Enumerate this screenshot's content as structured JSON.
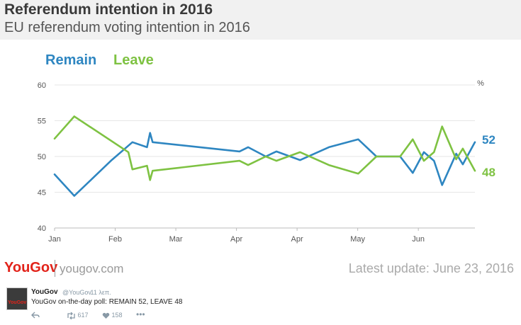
{
  "header": {
    "title": "Referendum intention in 2016",
    "subtitle": "EU referendum voting intention in 2016"
  },
  "chart_data": {
    "type": "line",
    "unit_label": "%",
    "ylim": [
      40,
      60
    ],
    "yticks": [
      40,
      45,
      50,
      55,
      60
    ],
    "grid": true,
    "legend_position": "top-left",
    "xticks": [
      {
        "label": "Jan",
        "x": 0
      },
      {
        "label": "Feb",
        "x": 1.2
      },
      {
        "label": "Mar",
        "x": 2.4
      },
      {
        "label": "Apr",
        "x": 3.6
      },
      {
        "label": "Apr",
        "x": 4.8
      },
      {
        "label": "May",
        "x": 6.0
      },
      {
        "label": "Jun",
        "x": 7.2
      }
    ],
    "series": [
      {
        "name": "Remain",
        "color": "#2e86c1",
        "end_label": "52",
        "points": [
          [
            0,
            47.5
          ],
          [
            0.39,
            44.5
          ],
          [
            1.13,
            49.5
          ],
          [
            1.54,
            52.0
          ],
          [
            1.83,
            51.3
          ],
          [
            1.89,
            53.3
          ],
          [
            1.94,
            52.0
          ],
          [
            3.66,
            50.7
          ],
          [
            3.83,
            51.3
          ],
          [
            4.18,
            50.0
          ],
          [
            4.39,
            50.7
          ],
          [
            4.86,
            49.5
          ],
          [
            5.43,
            51.3
          ],
          [
            6.01,
            52.4
          ],
          [
            6.37,
            50.0
          ],
          [
            6.84,
            50.0
          ],
          [
            7.09,
            47.7
          ],
          [
            7.31,
            50.6
          ],
          [
            7.51,
            49.4
          ],
          [
            7.67,
            46.0
          ],
          [
            7.95,
            50.4
          ],
          [
            8.08,
            48.9
          ],
          [
            8.32,
            52.0
          ]
        ]
      },
      {
        "name": "Leave",
        "color": "#7ec242",
        "end_label": "48",
        "points": [
          [
            0,
            52.5
          ],
          [
            0.39,
            55.6
          ],
          [
            1.46,
            50.6
          ],
          [
            1.54,
            48.2
          ],
          [
            1.83,
            48.7
          ],
          [
            1.89,
            46.7
          ],
          [
            1.94,
            48.0
          ],
          [
            3.66,
            49.4
          ],
          [
            3.83,
            48.8
          ],
          [
            4.18,
            50.0
          ],
          [
            4.39,
            49.4
          ],
          [
            4.86,
            50.6
          ],
          [
            5.43,
            48.8
          ],
          [
            6.01,
            47.6
          ],
          [
            6.37,
            50.0
          ],
          [
            6.84,
            50.0
          ],
          [
            7.09,
            52.4
          ],
          [
            7.31,
            49.4
          ],
          [
            7.51,
            50.6
          ],
          [
            7.67,
            54.2
          ],
          [
            7.95,
            49.6
          ],
          [
            8.08,
            51.1
          ],
          [
            8.32,
            48.0
          ]
        ]
      }
    ]
  },
  "legend": {
    "remain": "Remain",
    "leave": "Leave"
  },
  "footer": {
    "brand_you": "You",
    "brand_gov": "Gov",
    "site": "yougov.com",
    "update": "Latest update: June  23, 2016"
  },
  "tweet": {
    "avatar_text": "YouGov",
    "name": "YouGov",
    "handle": "@YouGov",
    "time": "· 11 λεπ.",
    "text": "YouGov on-the-day poll: REMAIN 52, LEAVE 48",
    "retweets": "617",
    "likes": "158"
  }
}
